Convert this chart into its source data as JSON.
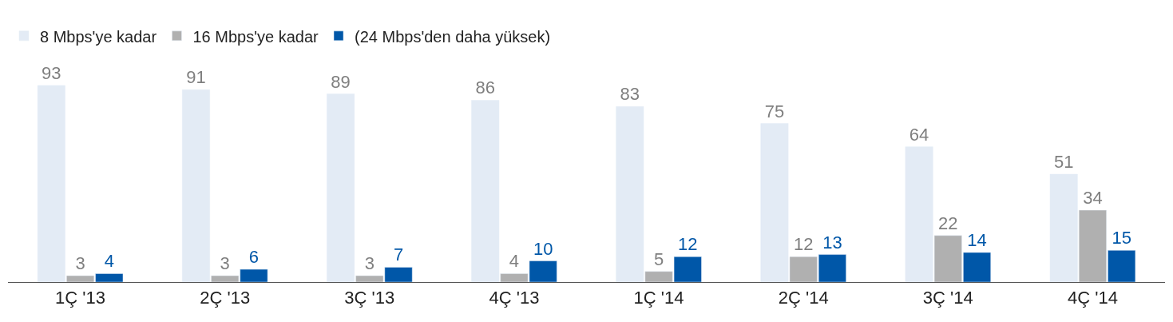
{
  "chart_data": {
    "type": "bar",
    "categories": [
      "1Ç '13",
      "2Ç '13",
      "3Ç '13",
      "4Ç '13",
      "1Ç '14",
      "2Ç '14",
      "3Ç '14",
      "4Ç '14"
    ],
    "series": [
      {
        "name": "8 Mbps'ye kadar",
        "color": "#e3ebf5",
        "values": [
          93,
          91,
          89,
          86,
          83,
          75,
          64,
          51
        ]
      },
      {
        "name": "16 Mbps'ye kadar",
        "color": "#b0b0b0",
        "values": [
          3,
          3,
          3,
          4,
          5,
          12,
          22,
          34
        ]
      },
      {
        "name": "(24 Mbps'den daha yüksek)",
        "color": "#0057a8",
        "values": [
          4,
          6,
          7,
          10,
          12,
          13,
          14,
          15
        ]
      }
    ],
    "data_labels": true,
    "legend": "top left"
  }
}
